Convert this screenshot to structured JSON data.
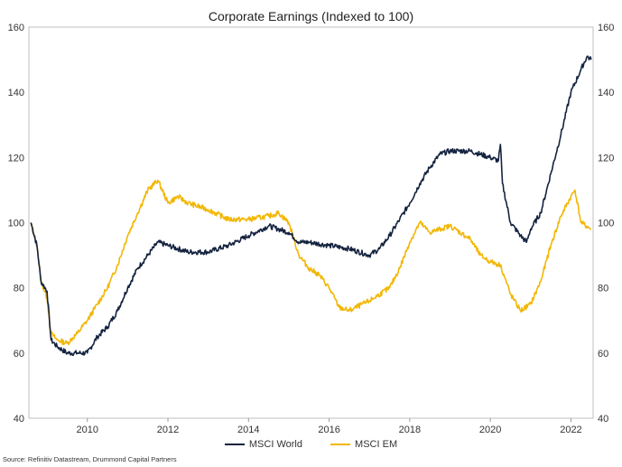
{
  "chart_data": {
    "type": "line",
    "title": "Corporate Earnings (Indexed to 100)",
    "xlabel": "",
    "ylabel": "",
    "xlim": [
      2008.55,
      2022.55
    ],
    "ylim": [
      40,
      160
    ],
    "y_ticks": [
      40,
      60,
      80,
      100,
      120,
      140,
      160
    ],
    "x_ticks": [
      2010,
      2012,
      2014,
      2016,
      2018,
      2020,
      2022
    ],
    "y_axes": "both",
    "grid": false,
    "legend_position": "bottom",
    "series": [
      {
        "name": "MSCI World",
        "color": "#14233f",
        "x": [
          2008.6,
          2008.75,
          2008.85,
          2009.0,
          2009.1,
          2009.25,
          2009.5,
          2009.75,
          2010.0,
          2010.25,
          2010.5,
          2010.75,
          2011.0,
          2011.25,
          2011.5,
          2011.75,
          2012.0,
          2012.5,
          2013.0,
          2013.5,
          2014.0,
          2014.5,
          2014.75,
          2015.0,
          2015.25,
          2015.5,
          2016.0,
          2016.5,
          2017.0,
          2017.25,
          2017.5,
          2017.75,
          2018.0,
          2018.25,
          2018.5,
          2018.75,
          2019.0,
          2019.5,
          2020.0,
          2020.2,
          2020.25,
          2020.3,
          2020.5,
          2020.75,
          2020.9,
          2021.0,
          2021.25,
          2021.5,
          2021.75,
          2022.0,
          2022.25,
          2022.4,
          2022.5
        ],
        "values": [
          100,
          93,
          82,
          79,
          64,
          62,
          60,
          60,
          60,
          65,
          68,
          73,
          80,
          86,
          90,
          94,
          93,
          91,
          91,
          93,
          96,
          99,
          98,
          97,
          94,
          94,
          93,
          92,
          90,
          92,
          96,
          101,
          106,
          112,
          117,
          121,
          122,
          122,
          120,
          119,
          124,
          112,
          100,
          96,
          94,
          98,
          103,
          115,
          127,
          140,
          147,
          151,
          150
        ]
      },
      {
        "name": "MSCI EM",
        "color": "#f2b705",
        "x": [
          2008.6,
          2008.75,
          2008.85,
          2009.0,
          2009.1,
          2009.25,
          2009.5,
          2009.75,
          2010.0,
          2010.25,
          2010.5,
          2010.75,
          2011.0,
          2011.25,
          2011.5,
          2011.75,
          2012.0,
          2012.25,
          2012.5,
          2013.0,
          2013.5,
          2014.0,
          2014.5,
          2014.75,
          2015.0,
          2015.25,
          2015.5,
          2015.75,
          2016.0,
          2016.25,
          2016.5,
          2017.0,
          2017.5,
          2017.75,
          2018.0,
          2018.25,
          2018.5,
          2018.75,
          2019.0,
          2019.5,
          2019.75,
          2020.0,
          2020.25,
          2020.5,
          2020.75,
          2021.0,
          2021.25,
          2021.5,
          2021.75,
          2022.0,
          2022.1,
          2022.25,
          2022.5
        ],
        "values": [
          100,
          93,
          82,
          77,
          66,
          64,
          63,
          66,
          70,
          75,
          80,
          87,
          96,
          103,
          110,
          113,
          106,
          108,
          106,
          104,
          101,
          101,
          102,
          103,
          100,
          90,
          86,
          84,
          80,
          74,
          73,
          76,
          80,
          86,
          94,
          100,
          97,
          98,
          99,
          95,
          90,
          88,
          87,
          78,
          73,
          75,
          82,
          93,
          102,
          108,
          110,
          100,
          98
        ]
      }
    ]
  },
  "source_note": "Source: Refinitiv Datastream, Drummond Capital Partners"
}
